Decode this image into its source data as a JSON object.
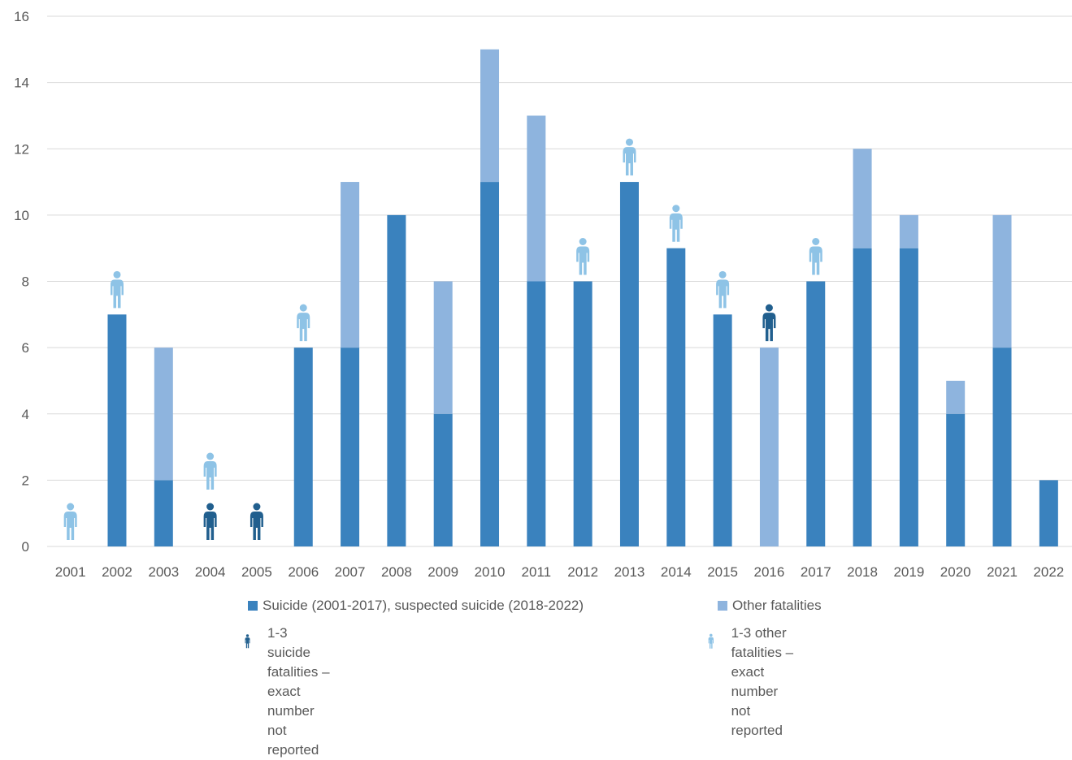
{
  "chart_data": {
    "type": "bar",
    "stacked": true,
    "categories": [
      "2001",
      "2002",
      "2003",
      "2004",
      "2005",
      "2006",
      "2007",
      "2008",
      "2009",
      "2010",
      "2011",
      "2012",
      "2013",
      "2014",
      "2015",
      "2016",
      "2017",
      "2018",
      "2019",
      "2020",
      "2021",
      "2022"
    ],
    "series": [
      {
        "name": "Suicide (2001-2017), suspected suicide (2018-2022)",
        "color": "#3A82BE",
        "values": [
          0,
          7,
          2,
          0,
          0,
          6,
          6,
          10,
          4,
          11,
          8,
          8,
          11,
          9,
          7,
          0,
          8,
          9,
          9,
          4,
          6,
          2
        ]
      },
      {
        "name": "Other fatalities",
        "color": "#8EB4DE",
        "values": [
          0,
          0,
          4,
          0,
          0,
          0,
          5,
          0,
          4,
          4,
          5,
          0,
          0,
          0,
          0,
          6,
          0,
          3,
          1,
          1,
          4,
          0
        ]
      }
    ],
    "not_reported_markers": {
      "suicide_years": [
        "2004",
        "2005",
        "2016"
      ],
      "other_years": [
        "2001",
        "2002",
        "2004",
        "2006",
        "2012",
        "2013",
        "2014",
        "2015",
        "2017"
      ],
      "suicide_color": "#215F8E",
      "other_color": "#8EC3E6"
    },
    "ylim": [
      0,
      16
    ],
    "yticks": [
      0,
      2,
      4,
      6,
      8,
      10,
      12,
      14,
      16
    ],
    "grid": true,
    "legend_position": "bottom",
    "xlabel": "",
    "ylabel": "",
    "title": ""
  },
  "legend": {
    "suicide_label": "Suicide (2001-2017), suspected suicide (2018-2022)",
    "other_label": "Other fatalities",
    "suicide_icon_line1": "1-3 suicide fatalities – exact",
    "suicide_icon_line2": "number not reported",
    "other_icon_line1": "1-3 other fatalities – exact",
    "other_icon_line2": "number not reported"
  }
}
